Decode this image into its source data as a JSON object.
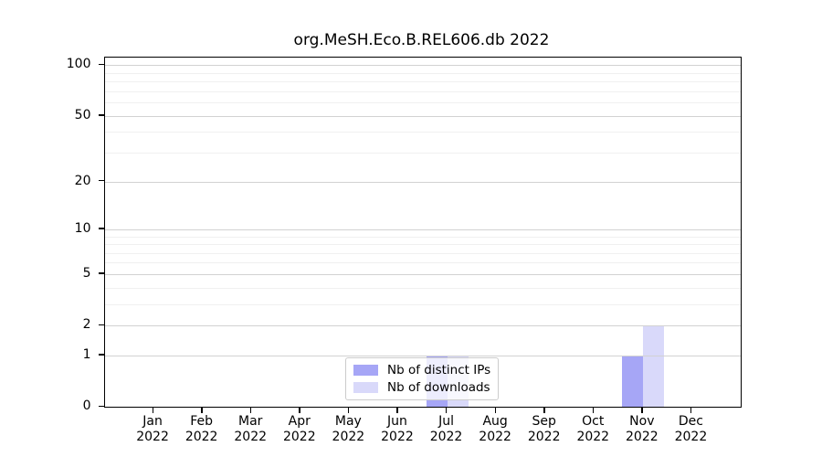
{
  "chart_data": {
    "type": "bar",
    "title": "org.MeSH.Eco.B.REL606.db 2022",
    "x_axis": {
      "months": [
        "Jan",
        "Feb",
        "Mar",
        "Apr",
        "May",
        "Jun",
        "Jul",
        "Aug",
        "Sep",
        "Oct",
        "Nov",
        "Dec"
      ],
      "year": "2022"
    },
    "y_axis": {
      "scale": "log1p",
      "ticks": [
        0,
        1,
        2,
        5,
        10,
        20,
        50,
        100
      ],
      "minor_gridlines": [
        3,
        4,
        6,
        7,
        8,
        9,
        30,
        40,
        60,
        70,
        80,
        90
      ],
      "max": 111
    },
    "series": [
      {
        "name": "Nb of distinct IPs",
        "color": "#a6a6f6",
        "values": [
          0,
          0,
          0,
          0,
          0,
          0,
          1,
          0,
          0,
          0,
          1,
          0
        ]
      },
      {
        "name": "Nb of downloads",
        "color": "#d9d9fa",
        "values": [
          0,
          0,
          0,
          0,
          0,
          0,
          1,
          0,
          0,
          0,
          2,
          0
        ]
      }
    ],
    "legend": {
      "position": "bottom-center",
      "background": "rgba(255,255,255,0.8)",
      "border_color": "#cccccc"
    },
    "grid": {
      "enabled": true,
      "major_color": "#d2d2d2",
      "minor_color": "#f0f0f0"
    },
    "colors": {
      "axis": "#000000",
      "background": "#ffffff"
    }
  }
}
